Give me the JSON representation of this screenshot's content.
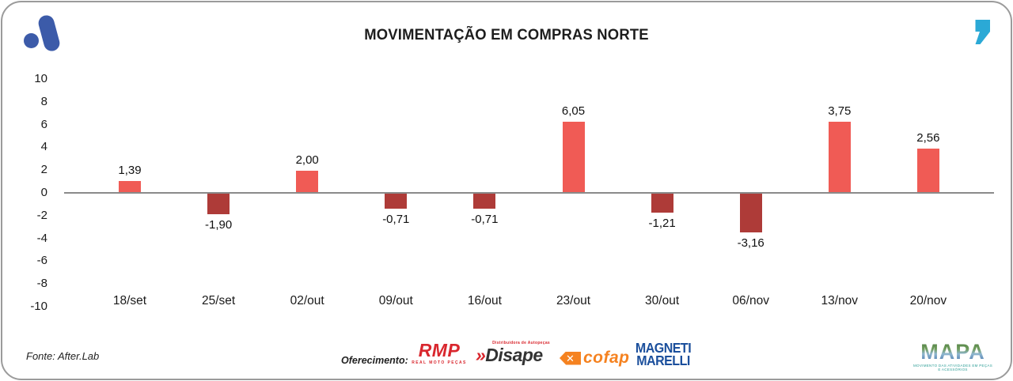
{
  "colors": {
    "positive_bar": "#F05B55",
    "negative_bar": "#AE3B38",
    "axis_line": "#8A8A8A",
    "logo_blue": "#3C5BA9",
    "quote_teal": "#2BA9D6",
    "rmp_red": "#D9272E",
    "disape_dark": "#333333",
    "cofap_orange": "#F58220",
    "marelli_blue": "#1B4F9C"
  },
  "chart_data": {
    "type": "bar",
    "title": "MOVIMENTAÇÃO EM COMPRAS NORTE",
    "categories": [
      "18/set",
      "25/set",
      "02/out",
      "09/out",
      "16/out",
      "23/out",
      "30/out",
      "06/nov",
      "13/nov",
      "20/nov"
    ],
    "values": [
      1.39,
      -1.9,
      2.0,
      -0.71,
      -0.71,
      6.05,
      -1.21,
      -3.16,
      3.75,
      2.56
    ],
    "value_labels": [
      "1,39",
      "-1,90",
      "2,00",
      "-0,71",
      "-0,71",
      "6,05",
      "-1,21",
      "-3,16",
      "3,75",
      "2,56"
    ],
    "bar_visual_units": [
      1.0,
      -1.8,
      1.85,
      -1.3,
      -1.35,
      6.15,
      -1.65,
      -3.4,
      6.15,
      3.8
    ],
    "y_ticks": [
      10,
      8,
      6,
      4,
      2,
      0,
      -2,
      -4,
      -6,
      -8,
      -10
    ],
    "ylim": [
      -10,
      10
    ],
    "xlabel": "",
    "ylabel": "",
    "grid": false,
    "legend": null
  },
  "footer": {
    "fonte": "Fonte: After.Lab",
    "oferecimento": "Oferecimento:",
    "sponsors": {
      "rmp": {
        "name": "RMP",
        "subtitle": "REAL MOTO PEÇAS"
      },
      "disape": {
        "prefix": "»",
        "name": "Disape",
        "tagline": "Distribuidora de Autopeças"
      },
      "cofap": {
        "icon": "✕",
        "name": "cofap"
      },
      "marelli": {
        "line1": "MAGNETI",
        "line2": "MARELLI"
      },
      "mapa": {
        "name": "MAPA",
        "subtitle": "MOVIMENTO DAS ATIVIDADES EM PEÇAS E ACESSÓRIOS"
      }
    }
  }
}
